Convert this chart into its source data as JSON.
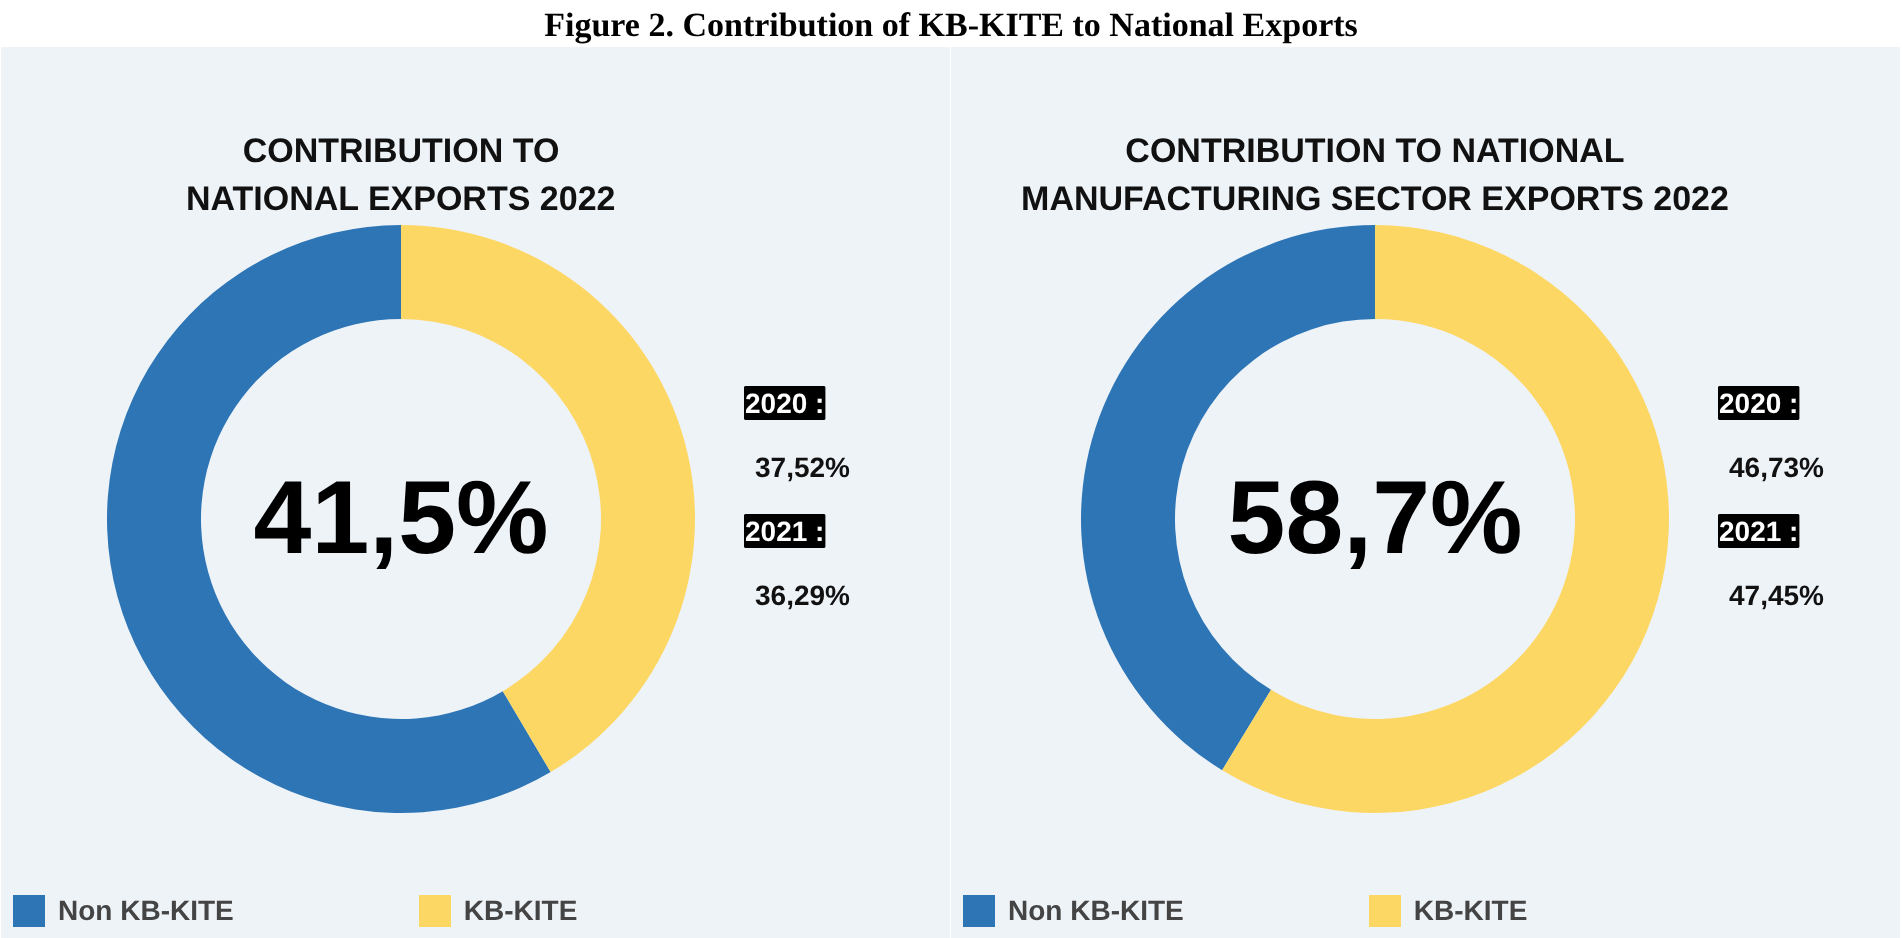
{
  "chart_data": [
    {
      "type": "donut",
      "title": "Figure 2. Contribution of KB-KITE to National Exports",
      "subtitle": "CONTRIBUTION TO\nNATIONAL EXPORTS 2022",
      "categories": [
        "Non KB-KITE",
        "KB-KITE"
      ],
      "values": [
        58.5,
        41.5
      ],
      "colors": [
        "#2e75b6",
        "#fdd764"
      ],
      "value_labels": [
        null,
        "41,5%"
      ],
      "legend": "bottom",
      "annotations": [
        "2020 :",
        "37,52%",
        "2021 :",
        "36,29%"
      ]
    },
    {
      "type": "donut",
      "subtitle": "CONTRIBUTION TO NATIONAL\nMANUFACTURING SECTOR EXPORTS 2022",
      "categories": [
        "Non KB-KITE",
        "KB-KITE"
      ],
      "values": [
        41.3,
        58.7
      ],
      "colors": [
        "#2e75b6",
        "#fdd764"
      ],
      "value_labels": [
        null,
        "58,7%"
      ],
      "legend": "bottom",
      "annotations": [
        "2020 :",
        "46,73%",
        "2021 :",
        "47,45%"
      ]
    }
  ]
}
